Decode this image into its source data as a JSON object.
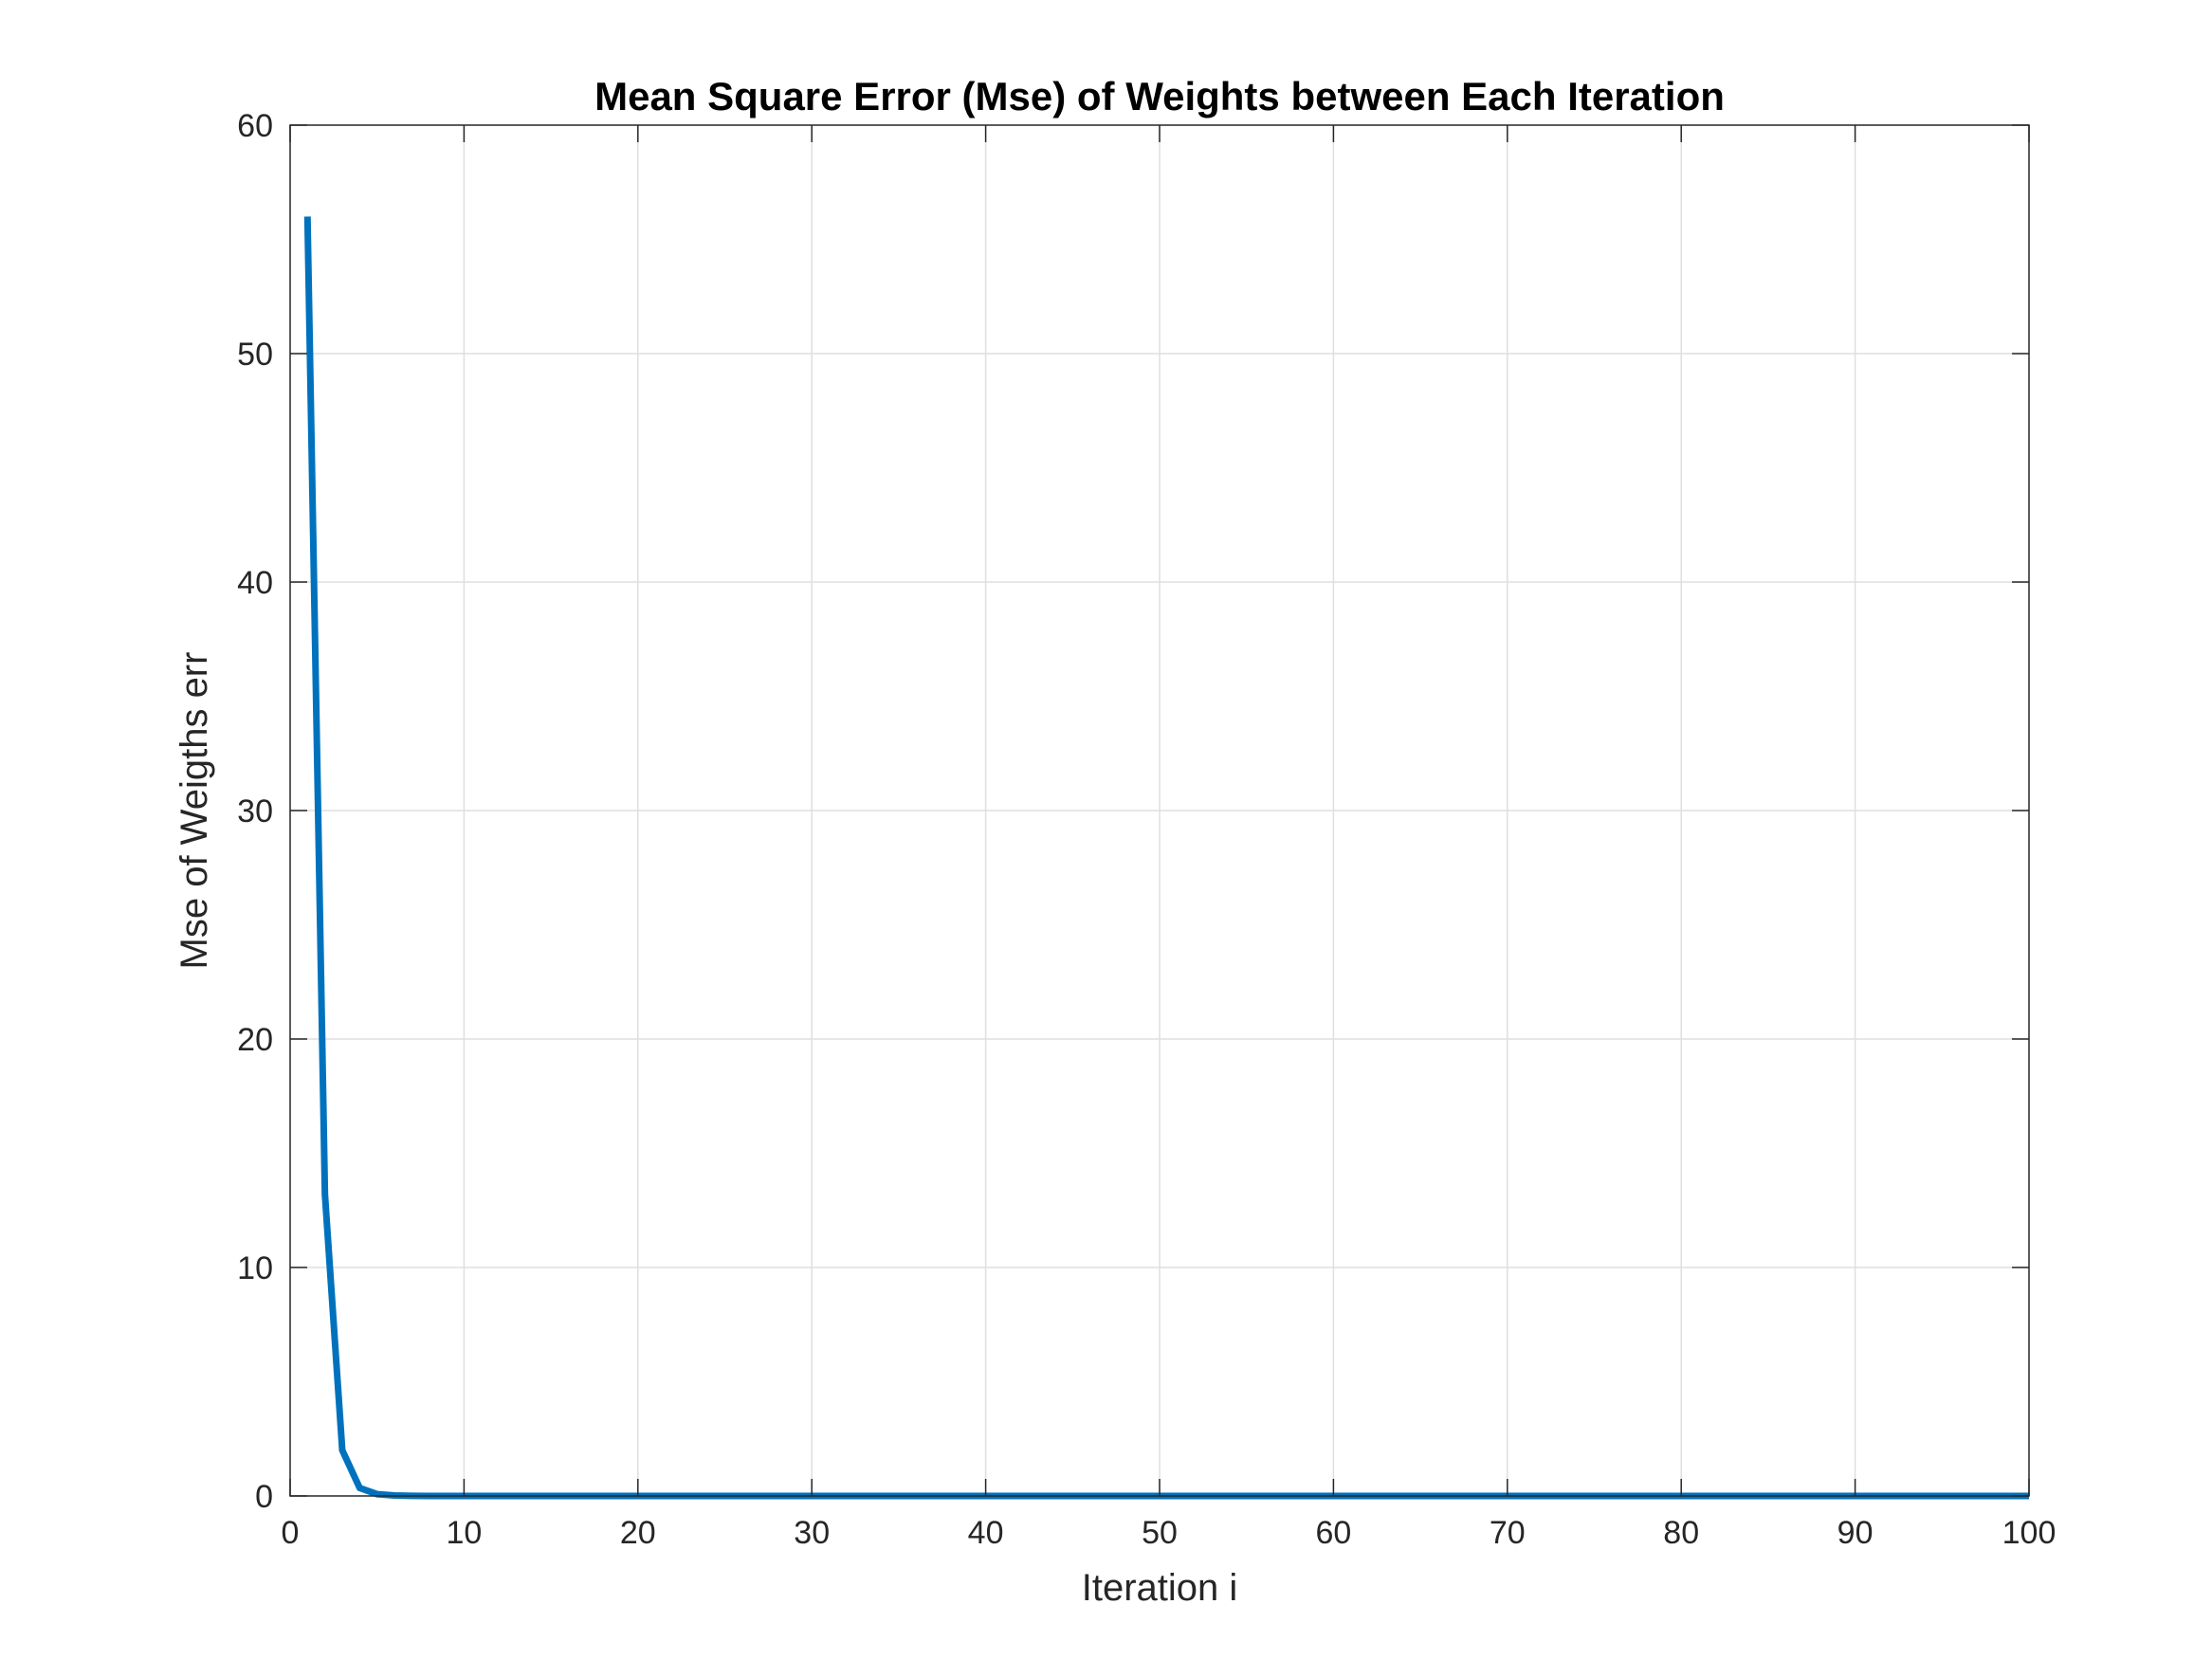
{
  "chart_data": {
    "type": "line",
    "title": "Mean Square Error (Mse) of Weights between Each Iteration",
    "xlabel": "Iteration i",
    "ylabel": "Mse of Weigths err",
    "xlim": [
      0,
      100
    ],
    "ylim": [
      0,
      60
    ],
    "xticks": [
      0,
      10,
      20,
      30,
      40,
      50,
      60,
      70,
      80,
      90,
      100
    ],
    "yticks": [
      0,
      10,
      20,
      30,
      40,
      50,
      60
    ],
    "grid": true,
    "line_color": "#0072bd",
    "series": [
      {
        "x": [
          1,
          2,
          3,
          4,
          5,
          6,
          7,
          8,
          10,
          20,
          30,
          40,
          50,
          60,
          70,
          80,
          90,
          100
        ],
        "values": [
          56,
          13.2,
          2.0,
          0.35,
          0.08,
          0.02,
          0.005,
          0.001,
          0,
          0,
          0,
          0,
          0,
          0,
          0,
          0,
          0,
          0
        ]
      }
    ]
  }
}
